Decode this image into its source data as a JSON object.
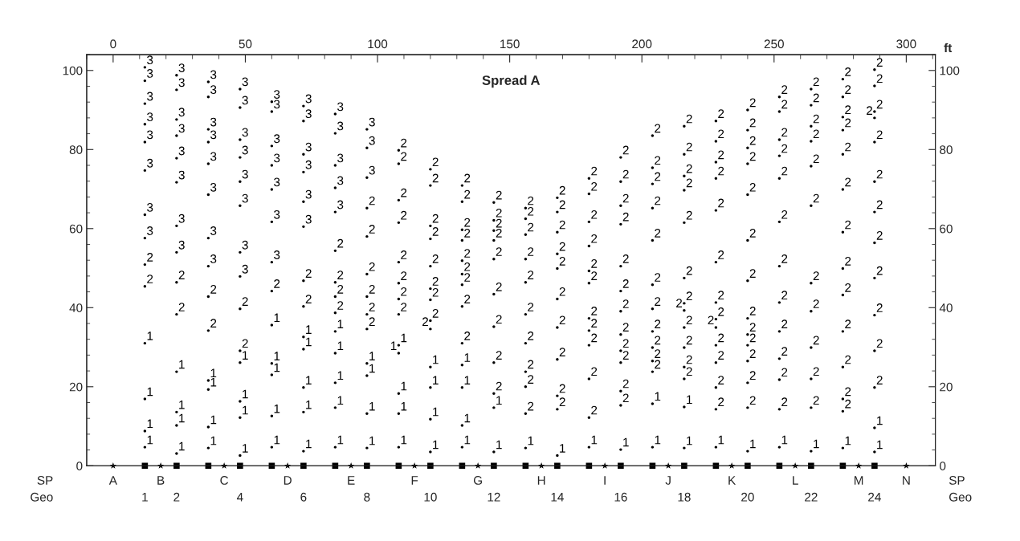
{
  "chart_data": {
    "type": "scatter",
    "title": "Spread A",
    "xlabel": "ft",
    "xlim": [
      -10,
      311
    ],
    "ylim": [
      0,
      104
    ],
    "y2lim": [
      0,
      104
    ],
    "xticks": [
      0,
      50,
      100,
      150,
      200,
      250,
      300
    ],
    "yticks": [
      0,
      20,
      40,
      60,
      80,
      100
    ],
    "y2ticks": [
      0,
      20,
      40,
      60,
      80,
      100
    ],
    "annotations": [
      "SP",
      "Geo",
      {
        "text": "A",
        "x": 0,
        "y": 0
      },
      {
        "text": "B",
        "x": 18,
        "y": 0
      },
      {
        "text": "C",
        "x": 42,
        "y": 0
      },
      {
        "text": "D",
        "x": 66,
        "y": 0
      },
      {
        "text": "E",
        "x": 90,
        "y": 0
      },
      {
        "text": "F",
        "x": 114,
        "y": 0
      },
      {
        "text": "G",
        "x": 138,
        "y": 0
      },
      {
        "text": "H",
        "x": 162,
        "y": 0
      },
      {
        "text": "I",
        "x": 186,
        "y": 0
      },
      {
        "text": "J",
        "x": 210,
        "y": 0
      },
      {
        "text": "K",
        "x": 234,
        "y": 0
      },
      {
        "text": "L",
        "x": 258,
        "y": 0
      },
      {
        "text": "M",
        "x": 282,
        "y": 0
      },
      {
        "text": "N",
        "x": 300,
        "y": 0
      },
      {
        "text": "1",
        "x": 12,
        "y": 0
      },
      {
        "text": "2",
        "x": 24,
        "y": 0
      },
      {
        "text": "4",
        "x": 48,
        "y": 0
      },
      {
        "text": "6",
        "x": 72,
        "y": 0
      },
      {
        "text": "8",
        "x": 96,
        "y": 0
      },
      {
        "text": "10",
        "x": 120,
        "y": 0
      },
      {
        "text": "12",
        "x": 144,
        "y": 0
      },
      {
        "text": "14",
        "x": 168,
        "y": 0
      },
      {
        "text": "16",
        "x": 192,
        "y": 0
      },
      {
        "text": "18",
        "x": 216,
        "y": 0
      },
      {
        "text": "20",
        "x": 240,
        "y": 0
      },
      {
        "text": "22",
        "x": 264,
        "y": 0
      },
      {
        "text": "24",
        "x": 288,
        "y": 0
      }
    ],
    "series": [
      {
        "name": "3",
        "color": "#000000",
        "marker": "circle",
        "x": [
          12,
          12,
          12,
          12,
          12,
          12,
          12,
          12,
          24,
          24,
          24,
          24,
          24,
          24,
          24,
          24,
          36,
          36,
          36,
          36,
          36,
          36,
          36,
          36,
          48,
          48,
          48,
          48,
          48,
          48,
          48,
          48,
          60,
          60,
          60,
          60,
          60,
          60,
          60,
          72,
          72,
          72,
          72,
          72,
          72,
          84,
          84,
          84,
          84,
          84,
          96,
          96,
          96
        ],
        "values": [
          100.8,
          97.4,
          91.6,
          86.4,
          81.9,
          74.7,
          63.5,
          57.6,
          98.8,
          95.1,
          87.6,
          83.5,
          77.8,
          71.7,
          60.7,
          54,
          97.1,
          93.3,
          85.1,
          81.9,
          76.4,
          68.6,
          57.6,
          50.5,
          95.3,
          90.6,
          82.5,
          78,
          71.9,
          65.8,
          54,
          47.9,
          92.1,
          89.6,
          80.9,
          76,
          69.9,
          61.7,
          51.5,
          91,
          87.2,
          78.8,
          74.3,
          66.8,
          60.5,
          89,
          84.1,
          76,
          70.3,
          64.2,
          85.1,
          80.4,
          72.9
        ]
      },
      {
        "name": "2",
        "color": "#000000",
        "marker": "circle",
        "x": [
          12,
          12,
          24,
          24,
          36,
          36,
          48,
          48,
          60,
          72,
          72,
          84,
          84,
          84,
          84,
          96,
          96,
          96,
          96,
          96,
          96,
          108,
          108,
          108,
          108,
          108,
          108,
          108,
          108,
          120,
          120,
          120,
          120,
          120,
          120,
          120,
          120,
          120,
          132,
          132,
          132,
          132,
          132,
          132,
          132,
          132,
          132,
          144,
          144,
          144,
          144,
          144,
          144,
          144,
          144,
          144,
          156,
          156,
          156,
          156,
          156,
          156,
          156,
          156,
          156,
          156,
          168,
          168,
          168,
          168,
          168,
          168,
          168,
          168,
          168,
          168,
          180,
          180,
          180,
          180,
          180,
          180,
          180,
          180,
          180,
          180,
          180,
          192,
          192,
          192,
          192,
          192,
          192,
          192,
          192,
          192,
          192,
          192,
          192,
          204,
          204,
          204,
          204,
          204,
          204,
          204,
          204,
          204,
          204,
          204,
          216,
          216,
          216,
          216,
          216,
          216,
          216,
          216,
          216,
          216,
          216,
          216,
          228,
          228,
          228,
          228,
          228,
          228,
          228,
          228,
          228,
          228,
          228,
          228,
          228,
          240,
          240,
          240,
          240,
          240,
          240,
          240,
          240,
          240,
          240,
          240,
          240,
          240,
          252,
          252,
          252,
          252,
          252,
          252,
          252,
          252,
          252,
          252,
          252,
          252,
          264,
          264,
          264,
          264,
          264,
          264,
          264,
          264,
          264,
          264,
          264,
          276,
          276,
          276,
          276,
          276,
          276,
          276,
          276,
          276,
          276,
          276,
          276,
          276,
          288,
          288,
          288,
          288,
          288,
          288,
          288,
          288,
          288,
          288,
          288,
          288
        ],
        "values": [
          50.9,
          45.4,
          46.4,
          38.3,
          42.8,
          34.2,
          39.7,
          29.1,
          44.2,
          46.8,
          40.3,
          54.4,
          46.4,
          42.8,
          38.7,
          65.2,
          58,
          48.5,
          42.8,
          38.3,
          34.6,
          79.8,
          76.4,
          67.2,
          61.5,
          51.5,
          46.2,
          42.2,
          38.3,
          75,
          70.9,
          60.7,
          57.4,
          50.5,
          44.8,
          42,
          36.7,
          34.6,
          70.9,
          66.8,
          59.7,
          57,
          51.9,
          48.5,
          45.8,
          40.3,
          31,
          66.6,
          62.1,
          59.5,
          57,
          52.3,
          43.4,
          35.2,
          26.1,
          18.3,
          65.2,
          62.5,
          58.5,
          52.3,
          46.4,
          38.3,
          31,
          23.8,
          20,
          13.2,
          67.8,
          64.2,
          59.1,
          53.6,
          49.9,
          42.2,
          35,
          26.9,
          17.7,
          14.3,
          72.7,
          68.8,
          61.7,
          55.6,
          49.3,
          46.2,
          37.3,
          34.2,
          30.5,
          22,
          12.2,
          78,
          71.9,
          65.8,
          61.1,
          50.5,
          44.2,
          39.1,
          33.2,
          29.1,
          26.1,
          18.9,
          15.3,
          83.5,
          75.4,
          71.3,
          65.2,
          57,
          45.8,
          39.7,
          34,
          29.9,
          26.5,
          23.8,
          85.9,
          78.8,
          73.3,
          69.7,
          61.5,
          47.5,
          41.1,
          39.3,
          35,
          29.9,
          25,
          22,
          87.2,
          82.1,
          76.8,
          72.7,
          64.6,
          51.5,
          41.3,
          37.1,
          35,
          30.5,
          26.1,
          19.8,
          14.3,
          90,
          84.9,
          80.4,
          76.4,
          68.6,
          57,
          46.8,
          37.3,
          33.2,
          30.5,
          26.5,
          21,
          14.7,
          93.3,
          89.6,
          82.5,
          78.4,
          72.7,
          61.7,
          50.5,
          41.3,
          34,
          27.1,
          21.8,
          14.3,
          95.3,
          91.2,
          85.9,
          82.1,
          75.8,
          65.8,
          46.2,
          39.1,
          29.9,
          22,
          14.7,
          97.8,
          93.3,
          88.2,
          84.9,
          78.8,
          69.9,
          59.1,
          49.9,
          43.2,
          34,
          25,
          16.9,
          13.8,
          100.2,
          96.1,
          89.6,
          88,
          81.9,
          71.9,
          64.2,
          56.4,
          47.5,
          38.1,
          29.1,
          19.8
        ]
      },
      {
        "name": "1",
        "color": "#000000",
        "marker": "circle",
        "x": [
          12,
          12,
          12,
          12,
          24,
          24,
          24,
          24,
          36,
          36,
          36,
          36,
          48,
          48,
          48,
          48,
          60,
          60,
          60,
          60,
          60,
          72,
          72,
          72,
          72,
          72,
          84,
          84,
          84,
          84,
          84,
          96,
          96,
          96,
          96,
          108,
          108,
          108,
          108,
          108,
          120,
          120,
          120,
          120,
          132,
          132,
          132,
          132,
          144,
          144,
          156,
          168,
          180,
          192,
          204,
          204,
          216,
          216,
          228,
          240,
          252,
          264,
          276,
          288,
          288
        ],
        "values": [
          31,
          16.9,
          8.8,
          4.7,
          23.8,
          13.6,
          10.2,
          3.1,
          21.6,
          19.3,
          9.8,
          4.5,
          26.1,
          16.3,
          12.2,
          2.6,
          35.6,
          25.9,
          23,
          12.6,
          4.7,
          32.6,
          29.5,
          19.8,
          13.6,
          3.7,
          34,
          28.5,
          21,
          14.7,
          4.7,
          25.9,
          22.8,
          13.2,
          4.5,
          30.5,
          28.5,
          18.3,
          13.2,
          4.7,
          25,
          19.8,
          11.8,
          3.5,
          25.5,
          19.8,
          10.2,
          4.7,
          14.7,
          3.5,
          4.5,
          2.6,
          4.7,
          4.1,
          15.7,
          4.7,
          14.9,
          4.5,
          4.7,
          3.7,
          4.7,
          3.7,
          4.5,
          9.6,
          3.5
        ]
      },
      {
        "color": "#000000",
        "marker": "star",
        "x": [
          0,
          18,
          42,
          66,
          90,
          114,
          138,
          162,
          186,
          210,
          234,
          258,
          282,
          300
        ],
        "values": [
          0,
          0,
          0,
          0,
          0,
          0,
          0,
          0,
          0,
          0,
          0,
          0,
          0,
          0
        ]
      },
      {
        "color": "#000000",
        "marker": "square",
        "x": [
          12,
          24,
          36,
          48,
          60,
          72,
          84,
          96,
          108,
          120,
          132,
          144,
          156,
          168,
          180,
          192,
          204,
          216,
          228,
          240,
          252,
          264,
          276,
          288
        ],
        "values": [
          0,
          0,
          0,
          0,
          0,
          0,
          0,
          0,
          0,
          0,
          0,
          0,
          0,
          0,
          0,
          0,
          0,
          0,
          0,
          0,
          0,
          0,
          0,
          0
        ]
      }
    ]
  }
}
